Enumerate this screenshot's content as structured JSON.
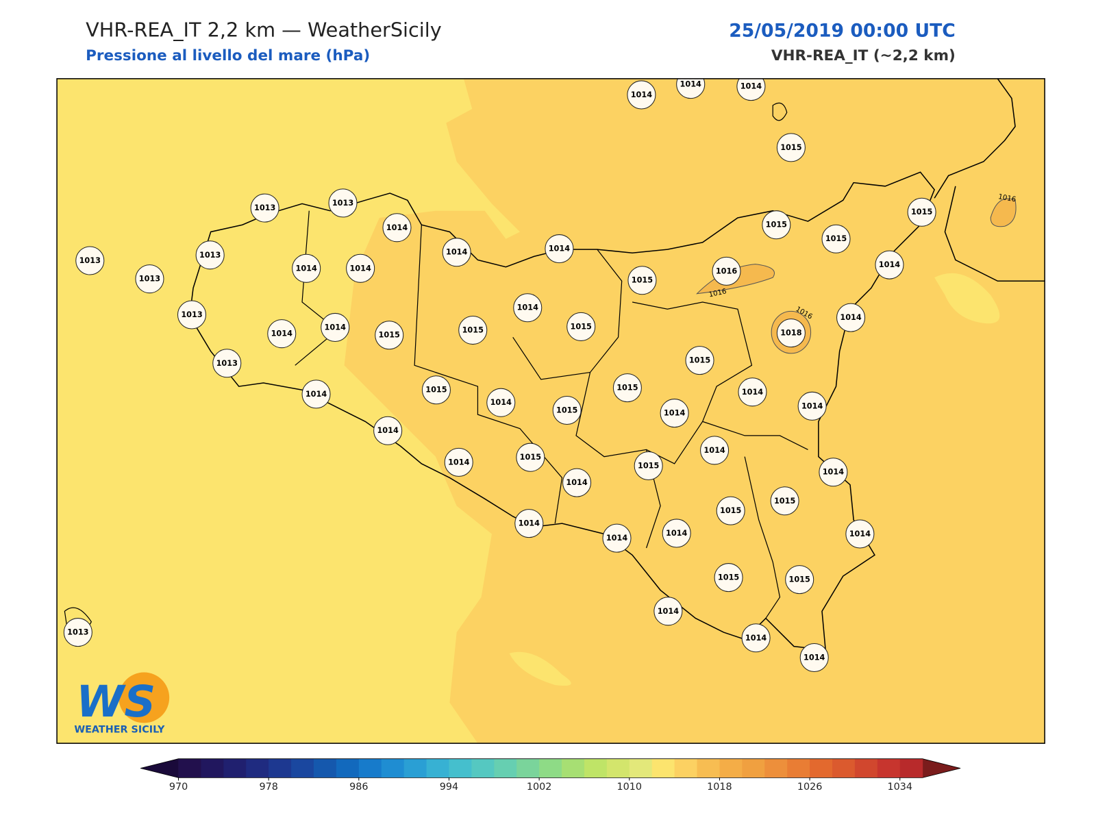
{
  "header": {
    "title": "VHR-REA_IT 2,2 km — WeatherSicily",
    "subtitle": "Pressione al livello del mare (hPa)",
    "date": "25/05/2019 00:00 UTC",
    "model": "VHR-REA_IT (~2,2 km)"
  },
  "map": {
    "stations": [
      "1014",
      "1014",
      "1014",
      "1015",
      "1013",
      "1013",
      "1014",
      "1014",
      "1014",
      "1015",
      "1015",
      "1015",
      "1013",
      "1013",
      "1013",
      "1014",
      "1014",
      "1015",
      "1016",
      "1014",
      "1013",
      "1014",
      "1014",
      "1018",
      "1014",
      "1014",
      "1015",
      "1015",
      "1015",
      "1013",
      "1015",
      "1014",
      "1015",
      "1014",
      "1015",
      "1015",
      "1014",
      "1014",
      "1014",
      "1014",
      "1014",
      "1015",
      "1014",
      "1015",
      "1014",
      "1014",
      "1015",
      "1015",
      "1014",
      "1014",
      "1014",
      "1014",
      "1015",
      "1015",
      "1013",
      "1014",
      "1014",
      "1014"
    ],
    "contour_labels": [
      "1016",
      "1016",
      "1016"
    ],
    "logo": {
      "mark": "WS",
      "text": "WEATHER SICILY"
    }
  },
  "colorbar": {
    "lim": [
      970,
      1036
    ],
    "ticks": [
      970,
      978,
      986,
      994,
      1002,
      1010,
      1018,
      1026,
      1034
    ],
    "colors": [
      "#22104d",
      "#21175e",
      "#20206f",
      "#1f2b80",
      "#1d3890",
      "#1a479f",
      "#1558ad",
      "#1269bd",
      "#177bcb",
      "#1f8dd2",
      "#2a9fd4",
      "#37b1d3",
      "#45bfcd",
      "#55c8c1",
      "#66cfb1",
      "#7ad49b",
      "#8edb86",
      "#a7df73",
      "#bfe467",
      "#d3e56c",
      "#e3e87a",
      "#fce46e",
      "#fcd162",
      "#f7bd52",
      "#f4ad47",
      "#f0a040",
      "#ed8f3b",
      "#e97d34",
      "#e3692e",
      "#db5a2e",
      "#d1472e",
      "#c7352e",
      "#b82a2b"
    ],
    "under": "#1a0a3a",
    "over": "#7a1c1c"
  }
}
